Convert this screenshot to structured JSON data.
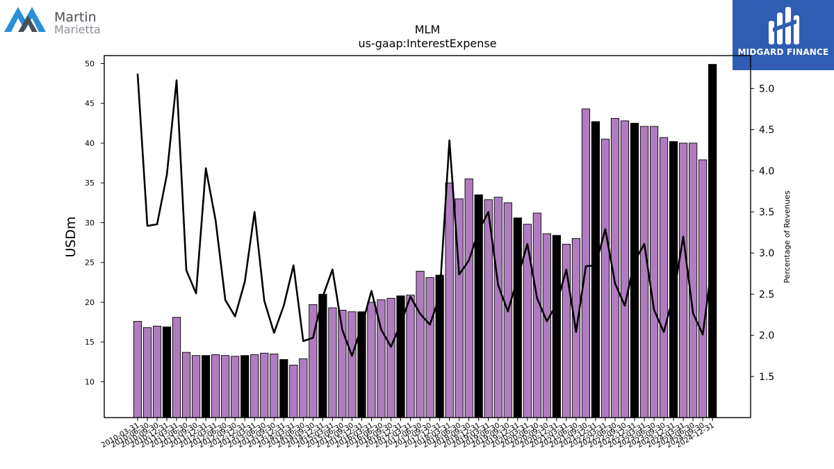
{
  "branding": {
    "company_line1": "Martin",
    "company_line2": "Marietta",
    "sponsor": "MIDGARD FINANCE",
    "accent_blue": "#2a8fd8",
    "accent_gray": "#4a4f55",
    "sponsor_bg": "#2f5db3"
  },
  "chart_data": {
    "type": "bar",
    "title": "MLM",
    "subtitle": "us-gaap:InterestExpense",
    "ylabel": "USDm",
    "y2label": "Percentage of Revenues",
    "ylim": [
      5.5,
      51
    ],
    "y2lim": [
      1.0,
      5.4
    ],
    "yticks": [
      10,
      15,
      20,
      25,
      30,
      35,
      40,
      45,
      50
    ],
    "y2ticks": [
      1.5,
      2.0,
      2.5,
      3.0,
      3.5,
      4.0,
      4.5,
      5.0
    ],
    "grid": false,
    "bar_color": "#b07cc0",
    "highlight_color": "#000000",
    "line_color": "#000000",
    "categories": [
      "2010-03-31",
      "2010-06-30",
      "2010-09-30",
      "2010-12-31",
      "2011-03-31",
      "2011-06-30",
      "2011-09-30",
      "2011-12-31",
      "2012-03-31",
      "2012-06-30",
      "2012-09-30",
      "2012-12-31",
      "2013-03-31",
      "2013-06-30",
      "2013-09-30",
      "2013-12-31",
      "2014-03-31",
      "2014-06-30",
      "2014-09-30",
      "2014-12-31",
      "2015-03-31",
      "2015-06-30",
      "2015-09-30",
      "2015-12-31",
      "2016-03-31",
      "2016-06-30",
      "2016-09-30",
      "2016-12-31",
      "2017-03-31",
      "2017-06-30",
      "2017-09-30",
      "2017-12-31",
      "2018-03-31",
      "2018-06-30",
      "2018-09-30",
      "2018-12-31",
      "2019-03-31",
      "2019-06-30",
      "2019-09-30",
      "2019-12-31",
      "2020-03-31",
      "2020-06-30",
      "2020-09-30",
      "2020-12-31",
      "2021-03-31",
      "2021-06-30",
      "2021-09-30",
      "2021-12-31",
      "2022-03-31",
      "2022-06-30",
      "2022-09-30",
      "2022-12-31",
      "2023-03-31",
      "2023-06-30",
      "2023-09-30",
      "2023-12-31",
      "2024-03-31",
      "2024-06-30",
      "2024-09-30",
      "2024-12-31"
    ],
    "series": [
      {
        "type": "bar",
        "axis": "left",
        "values": [
          17.6,
          16.8,
          17.0,
          16.9,
          18.1,
          13.7,
          13.3,
          13.3,
          13.4,
          13.3,
          13.2,
          13.3,
          13.4,
          13.6,
          13.5,
          12.8,
          12.1,
          12.9,
          19.7,
          21.0,
          19.3,
          19.0,
          18.8,
          18.8,
          20.0,
          20.3,
          20.5,
          20.8,
          20.9,
          23.9,
          23.1,
          23.4,
          35.0,
          33.0,
          35.5,
          33.5,
          32.9,
          33.2,
          32.5,
          30.6,
          29.8,
          31.2,
          28.6,
          28.4,
          27.3,
          28.0,
          44.3,
          42.7,
          40.5,
          43.1,
          42.8,
          42.5,
          42.1,
          42.1,
          40.7,
          40.2,
          40.0,
          40.0,
          37.9,
          49.9
        ],
        "highlight": [
          false,
          false,
          false,
          true,
          false,
          false,
          false,
          true,
          false,
          false,
          false,
          true,
          false,
          false,
          false,
          true,
          false,
          false,
          false,
          true,
          false,
          false,
          false,
          true,
          false,
          false,
          false,
          true,
          false,
          false,
          false,
          true,
          false,
          false,
          false,
          true,
          false,
          false,
          false,
          true,
          false,
          false,
          false,
          true,
          false,
          false,
          false,
          true,
          false,
          false,
          false,
          true,
          false,
          false,
          false,
          true,
          false,
          false,
          false,
          true
        ]
      },
      {
        "type": "line",
        "axis": "right",
        "values": [
          5.18,
          3.33,
          3.35,
          3.95,
          5.1,
          2.79,
          2.51,
          4.03,
          3.4,
          2.43,
          2.23,
          2.65,
          3.5,
          2.42,
          2.03,
          2.36,
          2.85,
          1.93,
          1.97,
          2.47,
          2.8,
          2.07,
          1.75,
          2.11,
          2.54,
          2.07,
          1.86,
          2.14,
          2.47,
          2.26,
          2.13,
          2.48,
          4.37,
          2.74,
          2.91,
          3.27,
          3.5,
          2.61,
          2.29,
          2.7,
          3.11,
          2.45,
          2.17,
          2.38,
          2.8,
          2.04,
          2.84,
          2.85,
          3.29,
          2.63,
          2.36,
          2.9,
          3.11,
          2.31,
          2.04,
          2.49,
          3.2,
          2.27,
          2.01,
          2.9
        ]
      }
    ]
  }
}
